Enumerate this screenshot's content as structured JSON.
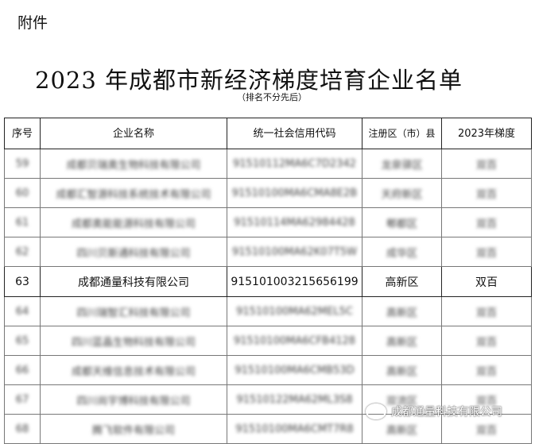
{
  "attachment_label": "附件",
  "title": "2023 年成都市新经济梯度培育企业名单",
  "subtitle": "（排名不分先后）",
  "columns": [
    "序号",
    "企业名称",
    "统一社会信用代码",
    "注册区（市）县",
    "2023年梯度"
  ],
  "rows": [
    {
      "no": "59",
      "name": "成都贝瑞奥生物科技有限公司",
      "code": "91510112MA6C7D2342",
      "district": "龙泉驿区",
      "tier": "双百",
      "blurred": true
    },
    {
      "no": "60",
      "name": "成都汇智源科技系统技术有限公司",
      "code": "91510100MA6CMA8E2B",
      "district": "天府新区",
      "tier": "双百",
      "blurred": true
    },
    {
      "no": "61",
      "name": "成都奥能能源科技有限公司",
      "code": "91510114MA62984428",
      "district": "郫都区",
      "tier": "双百",
      "blurred": true
    },
    {
      "no": "62",
      "name": "四川贝斯通科技有限公司",
      "code": "91510100MA62K07T5W",
      "district": "成华区",
      "tier": "双百",
      "blurred": true
    },
    {
      "no": "63",
      "name": "成都通量科技有限公司",
      "code": "915101003215656199",
      "district": "高新区",
      "tier": "双百",
      "blurred": false
    },
    {
      "no": "64",
      "name": "四川瑞智汇科技有限公司",
      "code": "91510100MA62MEL5C",
      "district": "高新区",
      "tier": "双百",
      "blurred": true
    },
    {
      "no": "65",
      "name": "四川蓝晶生物科技有限公司",
      "code": "91510100MA6CFB4128",
      "district": "高新区",
      "tier": "双百",
      "blurred": true
    },
    {
      "no": "66",
      "name": "成都天维信息技术有限公司",
      "code": "91510100MA6CMB53D",
      "district": "高新区",
      "tier": "双百",
      "blurred": true
    },
    {
      "no": "67",
      "name": "四川尚宇博科技有限公司",
      "code": "91510122MA62ML3S8",
      "district": "双流区",
      "tier": "双百",
      "blurred": true
    },
    {
      "no": "68",
      "name": "腾飞软件有限公司",
      "code": "91510100MA6CMT7R8",
      "district": "高新区",
      "tier": "双百",
      "blurred": true
    }
  ],
  "watermark": "成都通量科技有限公司"
}
